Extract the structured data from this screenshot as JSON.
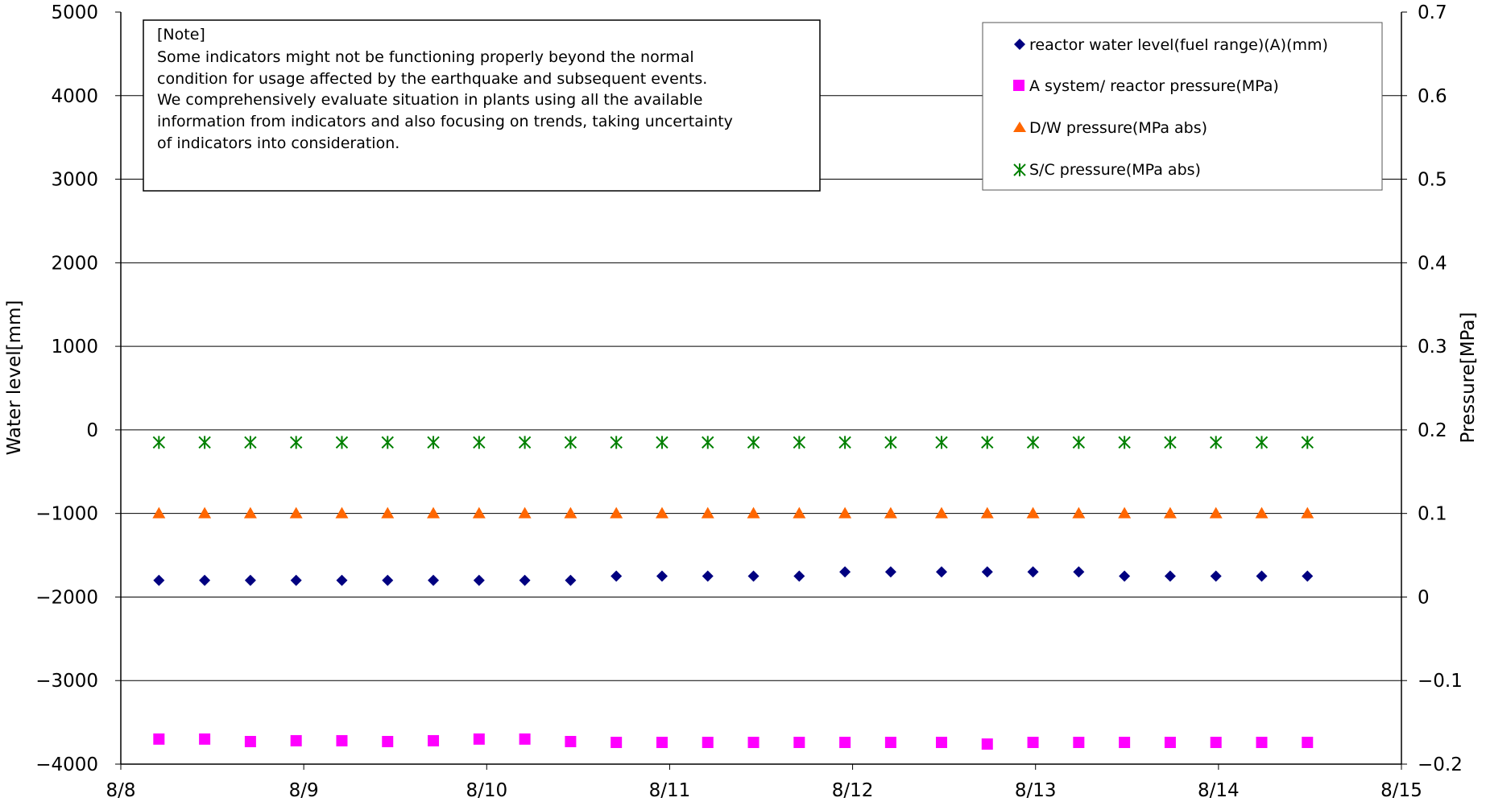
{
  "chart_data": {
    "type": "scatter",
    "x_tick_labels": [
      "8/8",
      "8/9",
      "8/10",
      "8/11",
      "8/12",
      "8/13",
      "8/14",
      "8/15"
    ],
    "xlim": [
      "8/8",
      "8/15"
    ],
    "ylabel_left": "Water level[mm]",
    "ylabel_right": "Pressure[MPa]",
    "ylim_left": [
      -4000,
      5000
    ],
    "ylim_right": [
      -0.2,
      0.7
    ],
    "y_ticks_left": [
      "5000",
      "4000",
      "3000",
      "2000",
      "1000",
      "0",
      "−1000",
      "−2000",
      "−3000",
      "−4000"
    ],
    "y_ticks_right": [
      "0.7",
      "0.6",
      "0.5",
      "0.4",
      "0.3",
      "0.2",
      "0.1",
      "0",
      "−0.1",
      "−0.2"
    ],
    "grid": true,
    "legend_position": "top-right",
    "x": [
      "8/8 05:00",
      "8/8 11:00",
      "8/8 17:00",
      "8/8 23:00",
      "8/9 05:00",
      "8/9 11:00",
      "8/9 17:00",
      "8/9 23:00",
      "8/10 05:00",
      "8/10 11:00",
      "8/10 17:00",
      "8/10 23:00",
      "8/11 05:00",
      "8/11 11:00",
      "8/11 17:00",
      "8/11 23:00",
      "8/12 05:00",
      "8/12 11:40",
      "8/12 17:40",
      "8/12 23:40",
      "8/13 05:40",
      "8/13 11:40",
      "8/13 17:40",
      "8/13 23:40",
      "8/14 05:40",
      "8/14 11:40"
    ],
    "series": [
      {
        "name": "reactor water level(fuel range)(A)(mm)",
        "axis": "left",
        "marker": "diamond",
        "color": "#000080",
        "values": [
          -1800,
          -1800,
          -1800,
          -1800,
          -1800,
          -1800,
          -1800,
          -1800,
          -1800,
          -1800,
          -1750,
          -1750,
          -1750,
          -1750,
          -1750,
          -1700,
          -1700,
          -1700,
          -1700,
          -1700,
          -1700,
          -1750,
          -1750,
          -1750,
          -1750,
          -1750
        ]
      },
      {
        "name": "A system/ reactor pressure(MPa)",
        "axis": "right",
        "marker": "square",
        "color": "#ff00ff",
        "values": [
          -0.17,
          -0.17,
          -0.173,
          -0.172,
          -0.172,
          -0.173,
          -0.172,
          -0.17,
          -0.17,
          -0.173,
          -0.174,
          -0.174,
          -0.174,
          -0.174,
          -0.174,
          -0.174,
          -0.174,
          -0.174,
          -0.176,
          -0.174,
          -0.174,
          -0.174,
          -0.174,
          -0.174,
          -0.174,
          -0.174
        ]
      },
      {
        "name": "D/W pressure(MPa abs)",
        "axis": "right",
        "marker": "triangle",
        "color": "#ff6600",
        "values": [
          0.1,
          0.1,
          0.1,
          0.1,
          0.1,
          0.1,
          0.1,
          0.1,
          0.1,
          0.1,
          0.1,
          0.1,
          0.1,
          0.1,
          0.1,
          0.1,
          0.1,
          0.1,
          0.1,
          0.1,
          0.1,
          0.1,
          0.1,
          0.1,
          0.1,
          0.1
        ]
      },
      {
        "name": "S/C pressure(MPa abs)",
        "axis": "right",
        "marker": "asterisk",
        "color": "#008000",
        "values": [
          0.185,
          0.185,
          0.185,
          0.185,
          0.185,
          0.185,
          0.185,
          0.185,
          0.185,
          0.185,
          0.185,
          0.185,
          0.185,
          0.185,
          0.185,
          0.185,
          0.185,
          0.185,
          0.185,
          0.185,
          0.185,
          0.185,
          0.185,
          0.185,
          0.185,
          0.185
        ]
      }
    ],
    "annotation": {
      "title": "[Note]",
      "lines": [
        "Some indicators might not be functioning properly beyond the normal",
        "condition for usage affected by the earthquake and subsequent events.",
        "We comprehensively evaluate situation in plants using all the available",
        "information from indicators and also focusing on trends, taking uncertainty",
        "of indicators into consideration."
      ]
    }
  }
}
